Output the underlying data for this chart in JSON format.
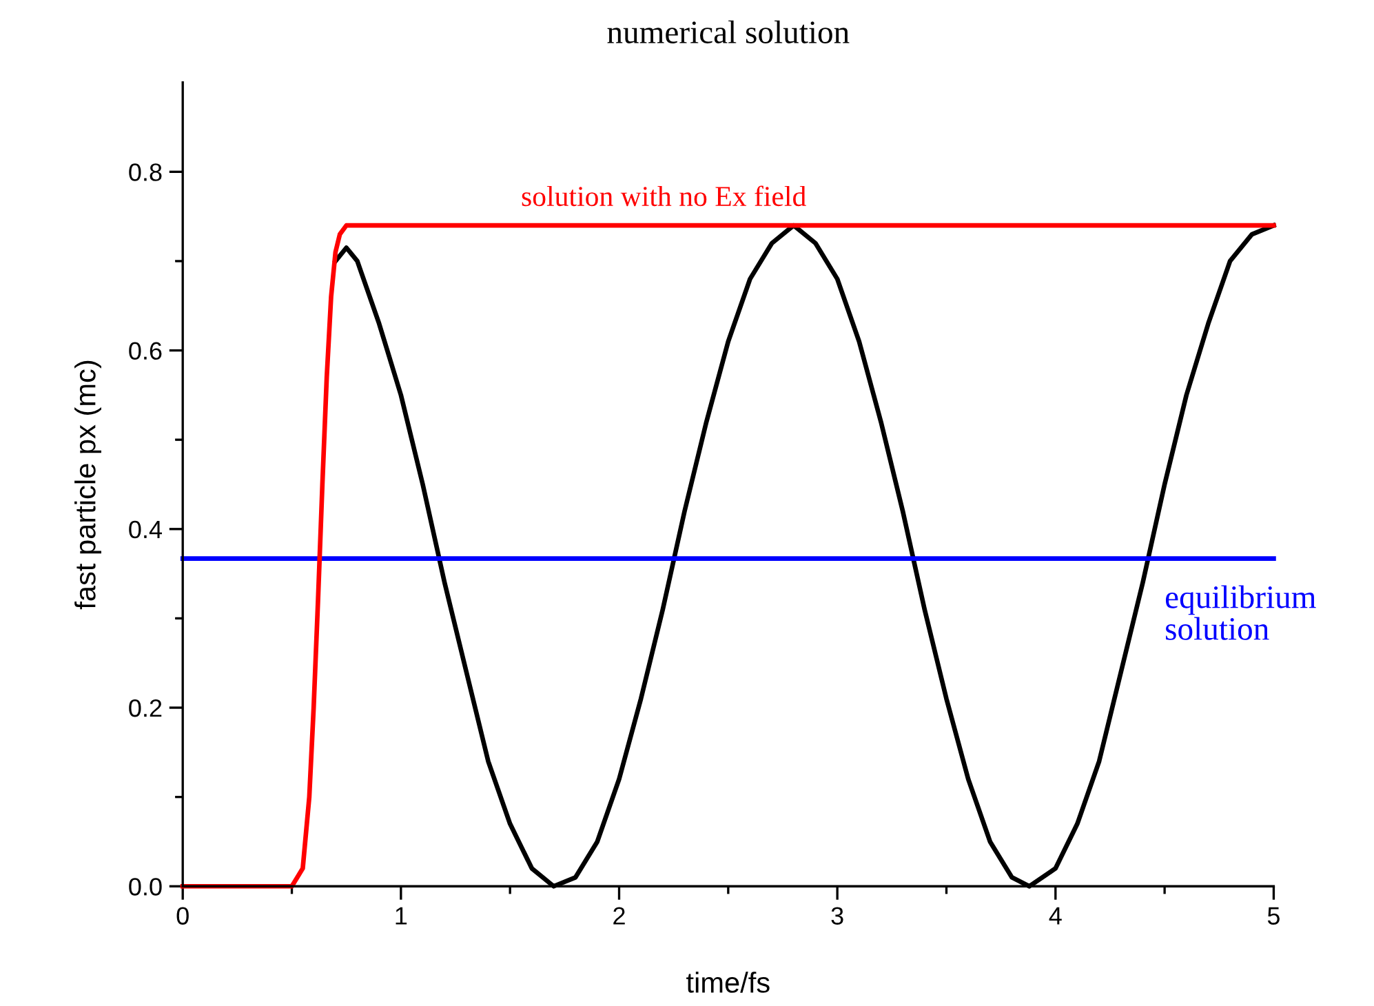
{
  "chart_data": {
    "type": "line",
    "title": "numerical solution",
    "xlabel": "time/fs",
    "ylabel": "fast particle px (mc)",
    "xlim": [
      0,
      5
    ],
    "ylim": [
      0,
      0.9
    ],
    "xticks": [
      0,
      1,
      2,
      3,
      4,
      5
    ],
    "yticks": [
      {
        "value": 0,
        "label": "0.0"
      },
      {
        "value": 0.2,
        "label": "0.2"
      },
      {
        "value": 0.4,
        "label": "0.4"
      },
      {
        "value": 0.6,
        "label": "0.6"
      },
      {
        "value": 0.8,
        "label": "0.8"
      }
    ],
    "grid": false,
    "legend": false,
    "marker": "none",
    "line_style": "solid",
    "series": [
      {
        "color": "#000000",
        "x": [
          0.7,
          0.75,
          0.8,
          0.9,
          1.0,
          1.1,
          1.2,
          1.3,
          1.4,
          1.5,
          1.6,
          1.7,
          1.8,
          1.9,
          2.0,
          2.1,
          2.2,
          2.3,
          2.4,
          2.5,
          2.6,
          2.7,
          2.8,
          2.9,
          3.0,
          3.1,
          3.2,
          3.3,
          3.4,
          3.5,
          3.6,
          3.7,
          3.8,
          3.88,
          4.0,
          4.1,
          4.2,
          4.3,
          4.4,
          4.5,
          4.6,
          4.7,
          4.8,
          4.9,
          5.0
        ],
        "values": [
          0.7,
          0.715,
          0.7,
          0.63,
          0.55,
          0.45,
          0.34,
          0.24,
          0.14,
          0.07,
          0.02,
          0.0,
          0.01,
          0.05,
          0.12,
          0.21,
          0.31,
          0.42,
          0.52,
          0.61,
          0.68,
          0.72,
          0.74,
          0.72,
          0.68,
          0.61,
          0.52,
          0.42,
          0.31,
          0.21,
          0.12,
          0.05,
          0.01,
          0.0,
          0.02,
          0.07,
          0.14,
          0.24,
          0.34,
          0.45,
          0.55,
          0.63,
          0.7,
          0.73,
          0.74
        ]
      },
      {
        "name": "equilibrium solution",
        "color": "#0000ff",
        "x": [
          0,
          5.0
        ],
        "values": [
          0.367,
          0.367
        ]
      },
      {
        "name": "solution with no Ex field",
        "color": "#ff0000",
        "x": [
          0,
          0.5,
          0.55,
          0.58,
          0.6,
          0.62,
          0.64,
          0.66,
          0.68,
          0.7,
          0.72,
          0.75,
          0.8,
          5.0
        ],
        "values": [
          0,
          0,
          0.02,
          0.1,
          0.2,
          0.32,
          0.45,
          0.57,
          0.66,
          0.71,
          0.73,
          0.74,
          0.74,
          0.74
        ]
      }
    ]
  }
}
